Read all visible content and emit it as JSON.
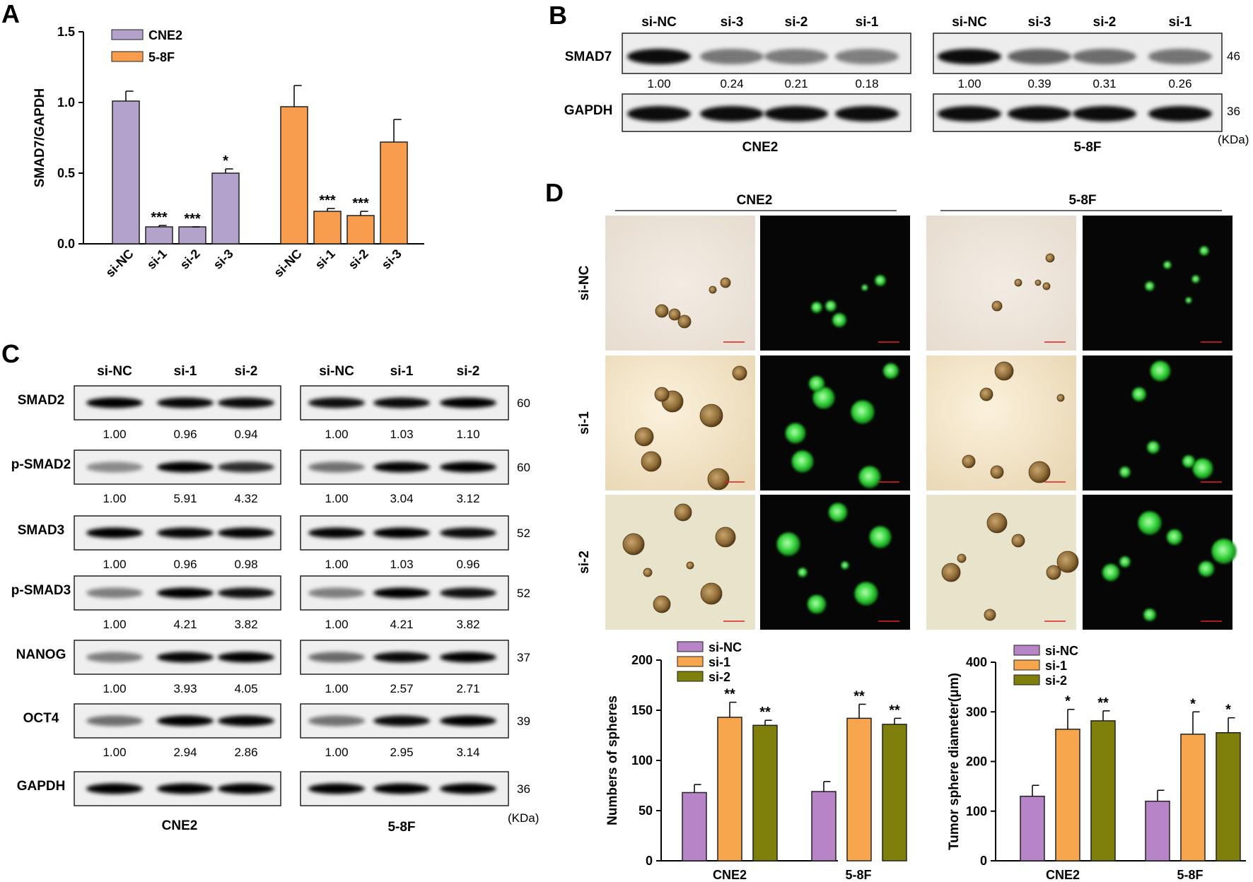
{
  "panels": {
    "a": "A",
    "b": "B",
    "c": "C",
    "d": "D"
  },
  "colors": {
    "cne2": "#b3a2cc",
    "f58": "#f79d4d",
    "si_nc": "#b784c8",
    "si_1": "#f8a64e",
    "si_2": "#7f7f0b",
    "bar_stroke": "#222222"
  },
  "blot_b": {
    "groups": [
      {
        "name": "CNE2",
        "lanes": [
          "si-NC",
          "si-3",
          "si-2",
          "si-1"
        ],
        "quant": [
          "1.00",
          "0.24",
          "0.21",
          "0.18"
        ]
      },
      {
        "name": "5-8F",
        "lanes": [
          "si-NC",
          "si-3",
          "si-2",
          "si-1"
        ],
        "quant": [
          "1.00",
          "0.39",
          "0.31",
          "0.26"
        ]
      }
    ],
    "rows": [
      {
        "protein": "SMAD7",
        "kda": "46"
      },
      {
        "protein": "GAPDH",
        "kda": "36"
      }
    ],
    "unit": "(KDa)"
  },
  "blot_c": {
    "lanes": [
      "si-NC",
      "si-1",
      "si-2"
    ],
    "groups": [
      "CNE2",
      "5-8F"
    ],
    "unit": "(KDa)",
    "rows": [
      {
        "protein": "SMAD2",
        "kda": "60",
        "cne2": [
          "1.00",
          "0.96",
          "0.94"
        ],
        "f58": [
          "1.00",
          "1.03",
          "1.10"
        ]
      },
      {
        "protein": "p-SMAD2",
        "kda": "60",
        "cne2": [
          "1.00",
          "5.91",
          "4.32"
        ],
        "f58": [
          "1.00",
          "3.04",
          "3.12"
        ]
      },
      {
        "protein": "SMAD3",
        "kda": "52",
        "cne2": [
          "1.00",
          "0.96",
          "0.98"
        ],
        "f58": [
          "1.00",
          "1.03",
          "0.96"
        ]
      },
      {
        "protein": "p-SMAD3",
        "kda": "52",
        "cne2": [
          "1.00",
          "4.21",
          "3.82"
        ],
        "f58": [
          "1.00",
          "4.21",
          "3.82"
        ]
      },
      {
        "protein": "NANOG",
        "kda": "37",
        "cne2": [
          "1.00",
          "3.93",
          "4.05"
        ],
        "f58": [
          "1.00",
          "2.57",
          "2.71"
        ]
      },
      {
        "protein": "OCT4",
        "kda": "39",
        "cne2": [
          "1.00",
          "2.94",
          "2.86"
        ],
        "f58": [
          "1.00",
          "2.95",
          "3.14"
        ]
      },
      {
        "protein": "GAPDH",
        "kda": "36",
        "cne2": [],
        "f58": []
      }
    ]
  },
  "micro_d": {
    "groups": [
      "CNE2",
      "5-8F"
    ],
    "rows": [
      "si-NC",
      "si-1",
      "si-2"
    ]
  },
  "chart_data": [
    {
      "type": "bar",
      "panel": "A",
      "ylabel": "SMAD7/GAPDH",
      "ylim": [
        0,
        1.5
      ],
      "yticks": [
        "0.0",
        "0.5",
        "1.0",
        "1.5"
      ],
      "categories": [
        "si-NC",
        "si-1",
        "si-2",
        "si-3"
      ],
      "legend": "top-left",
      "series": [
        {
          "name": "CNE2",
          "values": [
            1.01,
            0.12,
            0.12,
            0.5
          ],
          "errors": [
            0.07,
            0.01,
            0.0,
            0.03
          ],
          "stars": [
            "",
            "***",
            "***",
            "*"
          ]
        },
        {
          "name": "5-8F",
          "values": [
            0.97,
            0.23,
            0.2,
            0.72
          ],
          "errors": [
            0.15,
            0.02,
            0.03,
            0.16
          ],
          "stars": [
            "",
            "***",
            "***",
            ""
          ]
        }
      ]
    },
    {
      "type": "bar",
      "panel": "D",
      "ylabel": "Numbers of spheres",
      "ylim": [
        0,
        200
      ],
      "yticks": [
        "0",
        "50",
        "100",
        "150",
        "200"
      ],
      "categories": [
        "CNE2",
        "5-8F"
      ],
      "legend": "top-left",
      "series": [
        {
          "name": "si-NC",
          "values": [
            68,
            69
          ],
          "errors": [
            8,
            10
          ],
          "stars": [
            "",
            ""
          ]
        },
        {
          "name": "si-1",
          "values": [
            143,
            142
          ],
          "errors": [
            15,
            14
          ],
          "stars": [
            "**",
            "**"
          ]
        },
        {
          "name": "si-2",
          "values": [
            135,
            136
          ],
          "errors": [
            5,
            6
          ],
          "stars": [
            "**",
            "**"
          ]
        }
      ]
    },
    {
      "type": "bar",
      "panel": "D",
      "ylabel": "Tumor sphere diameter(μm)",
      "ylim": [
        0,
        400
      ],
      "yticks": [
        "0",
        "100",
        "200",
        "300",
        "400"
      ],
      "categories": [
        "CNE2",
        "5-8F"
      ],
      "legend": "top-left",
      "series": [
        {
          "name": "si-NC",
          "values": [
            130,
            120
          ],
          "errors": [
            22,
            22
          ],
          "stars": [
            "",
            ""
          ]
        },
        {
          "name": "si-1",
          "values": [
            265,
            255
          ],
          "errors": [
            40,
            45
          ],
          "stars": [
            "*",
            "*"
          ]
        },
        {
          "name": "si-2",
          "values": [
            282,
            258
          ],
          "errors": [
            20,
            30
          ],
          "stars": [
            "**",
            "*"
          ]
        }
      ]
    }
  ]
}
